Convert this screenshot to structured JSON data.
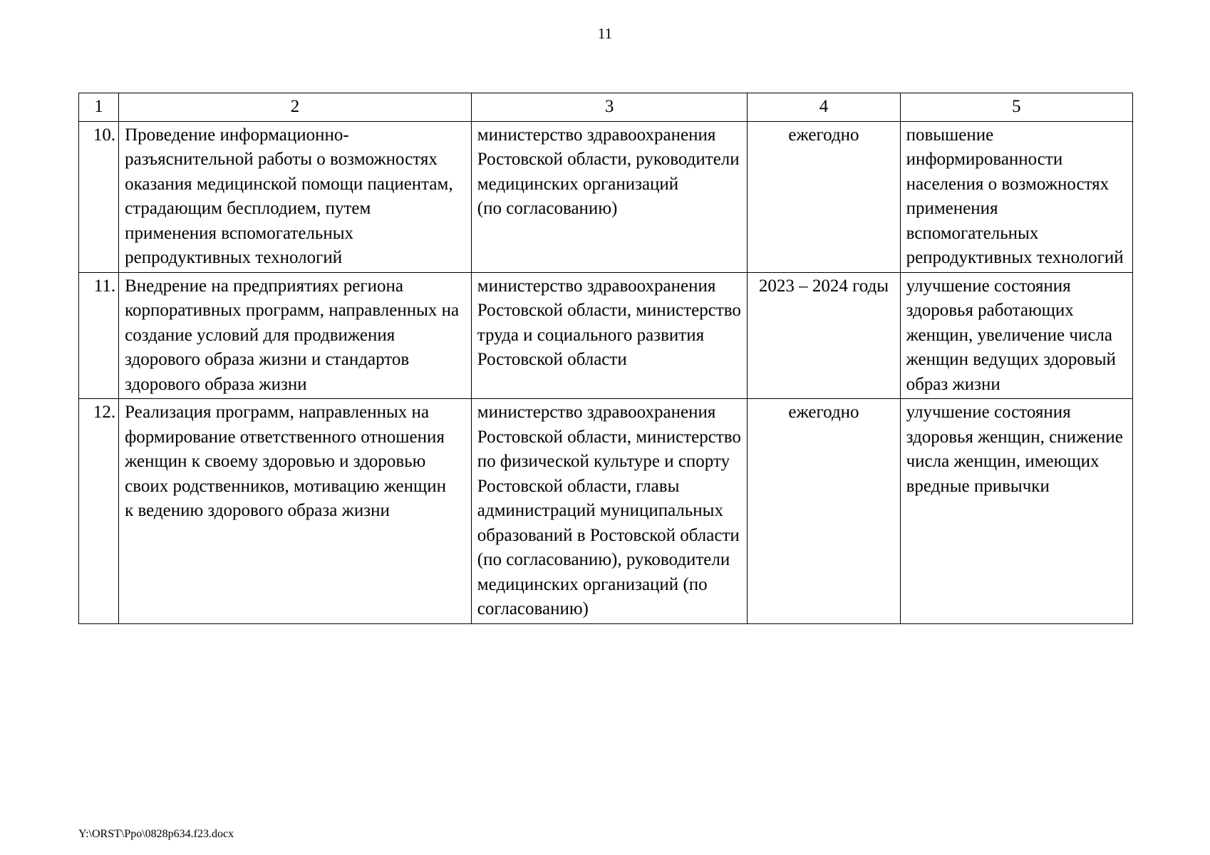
{
  "page_number": "11",
  "footer": "Y:\\ORST\\Ppo\\0828p634.f23.docx",
  "table": {
    "header": [
      "1",
      "2",
      "3",
      "4",
      "5"
    ],
    "rows": [
      {
        "num": "10.",
        "c2": "Проведение информационно-разъяснительной работы о возможностях оказания медицинской помощи пациентам, страдающим бесплодием, путем применения вспомогательных репродуктивных технологий",
        "c3": "министерство здравоохранения Ростовской области, руководители медицинских организаций (по согласованию)",
        "c4": "ежегодно",
        "c5": "повышение информированности населения о возможностях применения вспомогательных репродуктивных технологий"
      },
      {
        "num": "11.",
        "c2": "Внедрение на предприятиях региона корпоративных программ, направленных на создание условий для продвижения здорового образа жизни и стандартов здорового образа жизни",
        "c3": "министерство здравоохранения Ростовской области, министерство труда и социального развития Ростовской области",
        "c4": "2023 – 2024 годы",
        "c5": "улучшение состояния здоровья работающих женщин, увеличение числа женщин ведущих здоровый образ жизни"
      },
      {
        "num": "12.",
        "c2": "Реализация программ, направленных на формирование ответственного отношения женщин к своему здоровью и здоровью своих родственников, мотивацию женщин к ведению здорового образа жизни",
        "c3": "министерство здравоохранения Ростовской области, министерство по физической культуре и спорту Ростовской области, главы администраций муниципальных образований в Ростовской области (по согласованию), руководители медицинских организаций (по согласованию)",
        "c4": "ежегодно",
        "c5": "улучшение состояния здоровья женщин, снижение числа женщин, имеющих вредные привычки"
      }
    ]
  }
}
